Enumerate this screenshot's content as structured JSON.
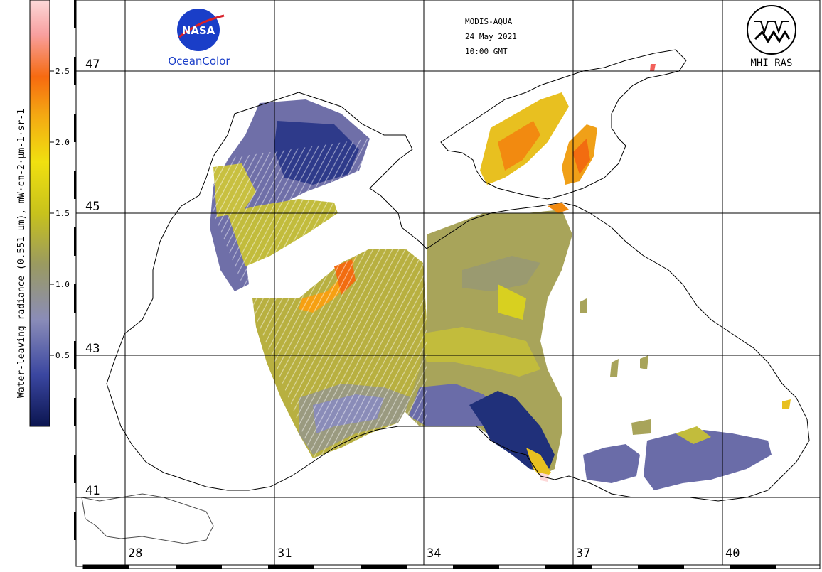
{
  "header": {
    "satellite": "MODIS-AQUA",
    "date": "24 May 2021",
    "time": "10:00 GMT"
  },
  "logos": {
    "nasa_wordmark": "NASA",
    "oceancolor_label": "OceanColor",
    "institute_label": "MHI RAS"
  },
  "colorbar": {
    "title": "Water-leaving radiance (0.551 µm), mW·cm-2·µm-1·sr-1",
    "ticks": [
      "2.5",
      "2.0",
      "1.5",
      "1.0",
      "0.5"
    ],
    "min": 0.0,
    "max": 3.0,
    "colors": [
      "#0b1550",
      "#3a46a0",
      "#8a8cb8",
      "#9a9a60",
      "#c8c21c",
      "#f0e010",
      "#f4a812",
      "#f66a10",
      "#f8a0a0",
      "#fcd8d8"
    ]
  },
  "map": {
    "latitudes": [
      "47",
      "45",
      "43",
      "41"
    ],
    "longitudes": [
      "28",
      "31",
      "34",
      "37",
      "40"
    ],
    "land_color": "#ffffff",
    "coast_color": "#000000",
    "grid_color": "#000000"
  }
}
